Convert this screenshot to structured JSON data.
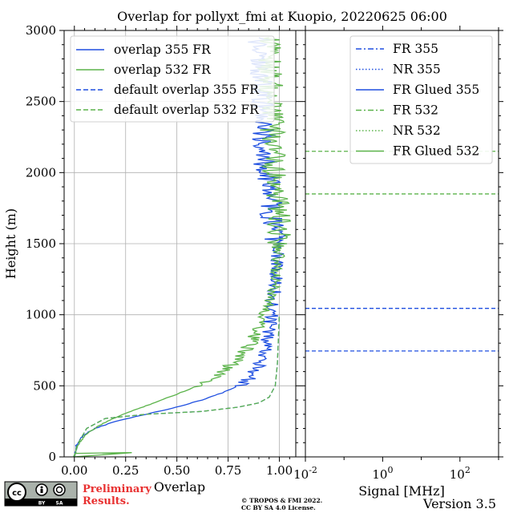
{
  "title": "Overlap for pollyxt_fmi at Kuopio, 20220625 06:00",
  "license_text": [
    "© TROPOS & FMI 2022.",
    "CC BY SA 4.0 License."
  ],
  "preliminary_text": [
    "Preliminary",
    "Results."
  ],
  "version": "Version 3.5",
  "cc_logo_labels": [
    "BY",
    "SA"
  ],
  "colors": {
    "blue": "#1f4fe0",
    "green": "#5bb34a"
  },
  "chart_data": [
    {
      "type": "line",
      "xlabel": "Overlap",
      "ylabel": "Height (m)",
      "xlim": [
        -0.05,
        1.08
      ],
      "ylim": [
        0,
        3000
      ],
      "xticks": [
        0.0,
        0.25,
        0.5,
        0.75,
        1.0
      ],
      "xtick_labels": [
        "0.00",
        "0.25",
        "0.50",
        "0.75",
        "1.00"
      ],
      "yticks": [
        0,
        500,
        1000,
        1500,
        2000,
        2500,
        3000
      ],
      "ytick_labels": [
        "0",
        "500",
        "1000",
        "1500",
        "2000",
        "2500",
        "3000"
      ],
      "grid": true,
      "legend_position": "top-left",
      "series": [
        {
          "name": "overlap 355 FR",
          "color": "#1f4fe0",
          "style": "solid",
          "x": [
            0.0,
            0.01,
            0.04,
            0.1,
            0.2,
            0.35,
            0.5,
            0.62,
            0.72,
            0.8,
            0.85,
            0.88,
            0.9,
            0.92,
            0.94,
            0.96,
            0.98,
            0.99,
            0.96,
            0.95,
            0.93,
            0.92,
            0.91,
            0.9
          ],
          "y": [
            0,
            80,
            150,
            200,
            250,
            300,
            350,
            400,
            450,
            500,
            550,
            600,
            650,
            700,
            800,
            1000,
            1200,
            1500,
            1700,
            1900,
            2100,
            2300,
            2600,
            2950
          ]
        },
        {
          "name": "overlap 532 FR",
          "color": "#5bb34a",
          "style": "solid",
          "x": [
            0.0,
            0.01,
            0.05,
            0.12,
            0.22,
            0.35,
            0.48,
            0.6,
            0.68,
            0.74,
            0.79,
            0.83,
            0.86,
            0.9,
            0.93,
            0.96,
            0.98,
            1.0,
            0.99,
            0.97,
            0.96,
            0.95
          ],
          "y": [
            0,
            70,
            150,
            220,
            290,
            360,
            430,
            500,
            560,
            620,
            680,
            740,
            800,
            900,
            1000,
            1100,
            1300,
            1500,
            1800,
            2100,
            2500,
            2950
          ]
        },
        {
          "name": "default overlap 355 FR",
          "color": "#1f4fe0",
          "style": "dashed",
          "x": [
            0.0,
            0.02,
            0.06,
            0.15,
            0.35,
            0.62,
            0.8,
            0.9,
            0.95,
            0.98,
            0.99,
            1.0
          ],
          "y": [
            0,
            100,
            200,
            270,
            300,
            320,
            350,
            380,
            420,
            500,
            650,
            1000
          ]
        },
        {
          "name": "default overlap 532 FR",
          "color": "#5bb34a",
          "style": "dashed",
          "x": [
            0.0,
            0.02,
            0.06,
            0.15,
            0.35,
            0.62,
            0.8,
            0.9,
            0.95,
            0.98,
            0.99,
            1.0
          ],
          "y": [
            0,
            100,
            200,
            270,
            300,
            320,
            350,
            380,
            420,
            500,
            650,
            1000
          ]
        }
      ]
    },
    {
      "type": "line",
      "xlabel": "Signal [MHz]",
      "ylabel": "",
      "xscale": "log",
      "xlim": [
        0.01,
        1000
      ],
      "ylim": [
        0,
        3000
      ],
      "xticks": [
        0.01,
        1,
        100
      ],
      "xtick_labels": [
        [
          "10",
          "-2"
        ],
        [
          "10",
          "0"
        ],
        [
          "10",
          "2"
        ]
      ],
      "legend_position": "top-right",
      "legend_entries": [
        {
          "name": "FR 355",
          "color": "#1f4fe0",
          "style": "dashdot"
        },
        {
          "name": "NR 355",
          "color": "#1f4fe0",
          "style": "dotted"
        },
        {
          "name": "FR Glued 355",
          "color": "#1f4fe0",
          "style": "solid"
        },
        {
          "name": "FR 532",
          "color": "#5bb34a",
          "style": "dashdot"
        },
        {
          "name": "NR 532",
          "color": "#5bb34a",
          "style": "dotted"
        },
        {
          "name": "FR Glued 532",
          "color": "#5bb34a",
          "style": "solid"
        }
      ],
      "hlines": [
        {
          "y": 2150,
          "color": "#5bb34a",
          "style": "dashed"
        },
        {
          "y": 1850,
          "color": "#5bb34a",
          "style": "dashed"
        },
        {
          "y": 1045,
          "color": "#1f4fe0",
          "style": "dashed"
        },
        {
          "y": 745,
          "color": "#1f4fe0",
          "style": "dashed"
        }
      ]
    }
  ]
}
